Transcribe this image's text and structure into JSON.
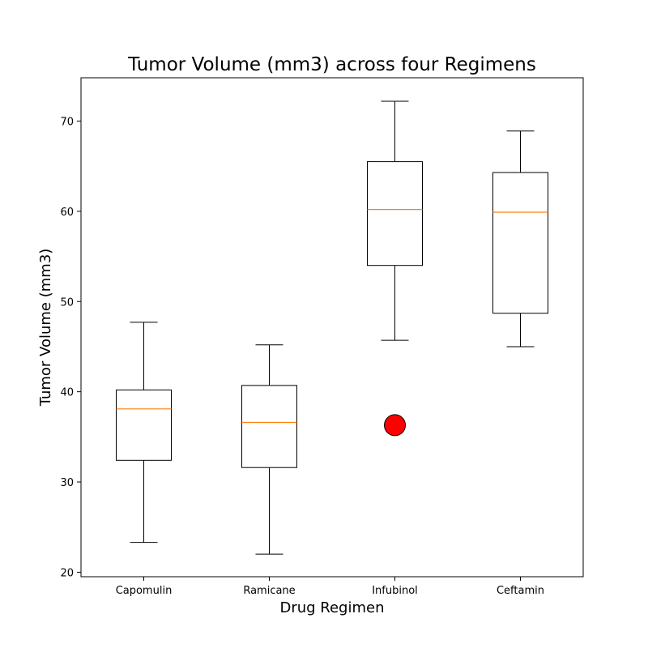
{
  "chart_data": {
    "type": "box",
    "title": "Tumor Volume (mm3) across four Regimens",
    "xlabel": "Drug Regimen",
    "ylabel": "Tumor Volume (mm3)",
    "ylim": [
      19.5,
      74.8
    ],
    "yticks": [
      20,
      30,
      40,
      50,
      60,
      70
    ],
    "grid": false,
    "median_color": "#ff7f0e",
    "outlier_color": "#ff0000",
    "categories": [
      "Capomulin",
      "Ramicane",
      "Infubinol",
      "Ceftamin"
    ],
    "boxes": [
      {
        "name": "Capomulin",
        "whisker_low": 23.3,
        "q1": 32.4,
        "median": 38.1,
        "q3": 40.2,
        "whisker_high": 47.7,
        "outliers": []
      },
      {
        "name": "Ramicane",
        "whisker_low": 22.0,
        "q1": 31.6,
        "median": 36.6,
        "q3": 40.7,
        "whisker_high": 45.2,
        "outliers": []
      },
      {
        "name": "Infubinol",
        "whisker_low": 45.7,
        "q1": 54.0,
        "median": 60.2,
        "q3": 65.5,
        "whisker_high": 72.2,
        "outliers": [
          36.3
        ]
      },
      {
        "name": "Ceftamin",
        "whisker_low": 45.0,
        "q1": 48.7,
        "median": 59.9,
        "q3": 64.3,
        "whisker_high": 68.9,
        "outliers": []
      }
    ]
  }
}
